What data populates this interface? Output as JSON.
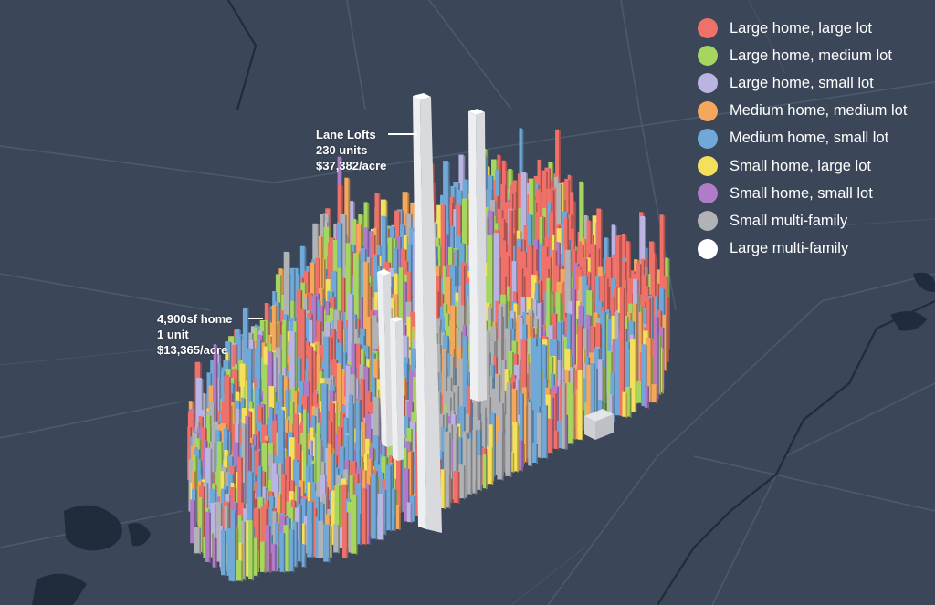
{
  "legend": {
    "items": [
      {
        "label": "Large home, large lot",
        "color": "#f0706a"
      },
      {
        "label": "Large home, medium lot",
        "color": "#a6d660"
      },
      {
        "label": "Large home, small lot",
        "color": "#b9b4e2"
      },
      {
        "label": "Medium home, medium lot",
        "color": "#f5a85c"
      },
      {
        "label": "Medium home, small lot",
        "color": "#70a8d8"
      },
      {
        "label": "Small home, large lot",
        "color": "#f4e05c"
      },
      {
        "label": "Small home, small lot",
        "color": "#b07cc8"
      },
      {
        "label": "Small multi-family",
        "color": "#b0b2b6"
      },
      {
        "label": "Large multi-family",
        "color": "#ffffff"
      }
    ]
  },
  "annotations": {
    "lane_lofts": {
      "name": "Lane Lofts",
      "units": "230 units",
      "value": "$37,382/acre"
    },
    "home": {
      "name": "4,900sf home",
      "units": "1 unit",
      "value": "$13,365/acre"
    }
  },
  "colors": {
    "background": "#3b4658",
    "road": "#4c5a6d",
    "water": "#202b3c"
  }
}
